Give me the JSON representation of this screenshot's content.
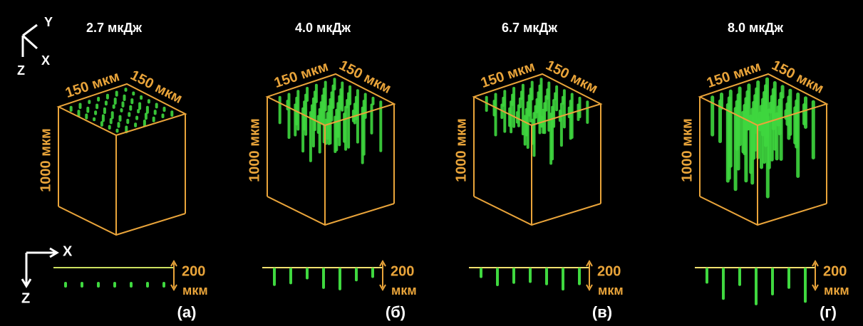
{
  "axes_3d": {
    "y": "Y",
    "x": "X",
    "z": "Z"
  },
  "axes_2d": {
    "x": "X",
    "z": "Z"
  },
  "panels": [
    {
      "energy": "2.7 мкДж",
      "width": "150 мкм",
      "depth": "150 мкм",
      "height": "1000 мкм",
      "scale_value": "200",
      "scale_unit": "мкм",
      "label": "(а)"
    },
    {
      "energy": "4.0 мкДж",
      "width": "150 мкм",
      "depth": "150 мкм",
      "height": "1000 мкм",
      "scale_value": "200",
      "scale_unit": "мкм",
      "label": "(б)"
    },
    {
      "energy": "6.7 мкДж",
      "width": "150 мкм",
      "depth": "150 мкм",
      "height": "1000 мкм",
      "scale_value": "200",
      "scale_unit": "мкм",
      "label": "(в)"
    },
    {
      "energy": "8.0 мкДж",
      "width": "150 мкм",
      "depth": "150 мкм",
      "height": "1000 мкм",
      "scale_value": "200",
      "scale_unit": "мкм",
      "label": "(г)"
    }
  ]
}
